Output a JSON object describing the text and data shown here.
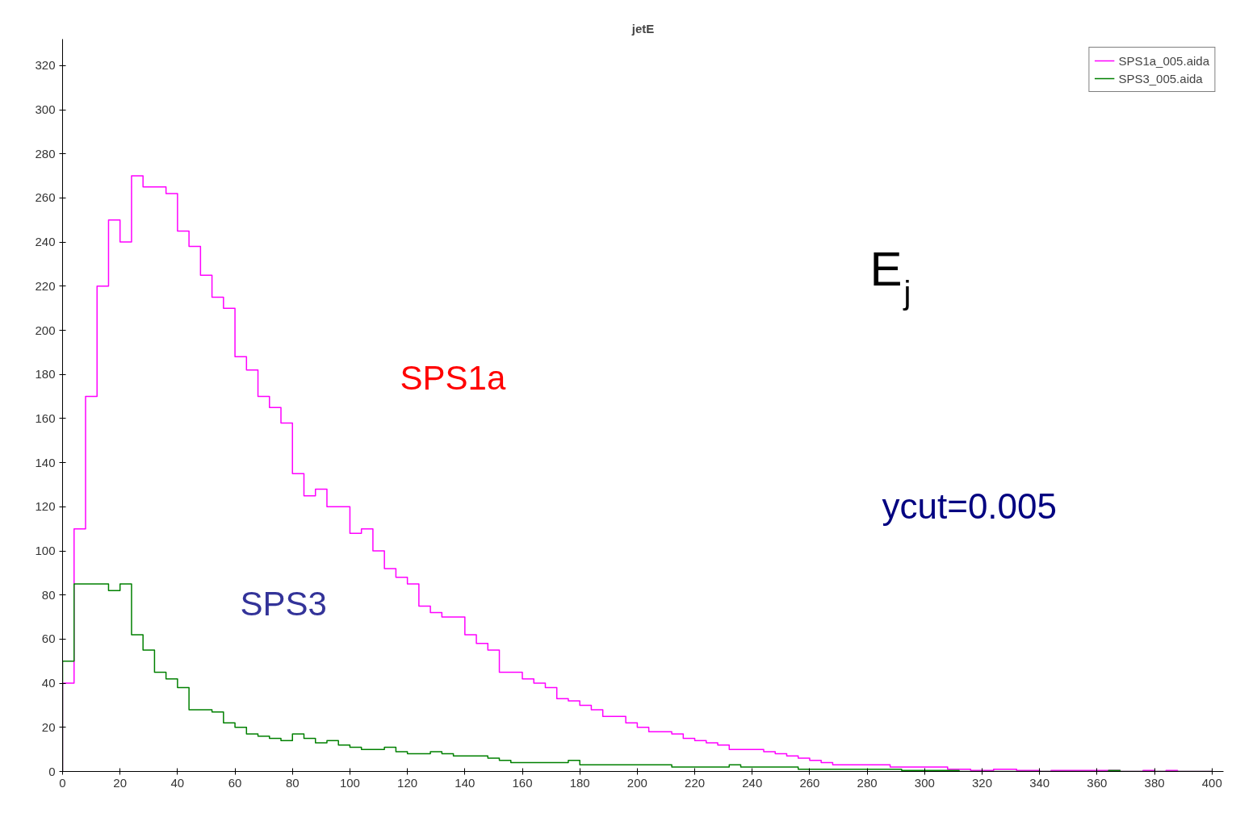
{
  "chart_data": {
    "type": "histogram",
    "title": "jetE",
    "bins": [
      0,
      4,
      8,
      12,
      16,
      20,
      24,
      28,
      32,
      36,
      40,
      44,
      48,
      52,
      56,
      60,
      64,
      68,
      72,
      76,
      80,
      84,
      88,
      92,
      96,
      100,
      104,
      108,
      112,
      116,
      120,
      124,
      128,
      132,
      136,
      140,
      144,
      148,
      152,
      156,
      160,
      164,
      168,
      172,
      176,
      180,
      184,
      188,
      192,
      196,
      200,
      204,
      208,
      212,
      216,
      220,
      224,
      228,
      232,
      236,
      240,
      244,
      248,
      252,
      256,
      260,
      264,
      268,
      272,
      276,
      280,
      284,
      288,
      292,
      296,
      300,
      304,
      308,
      312,
      316,
      320,
      324,
      328,
      332,
      336,
      340,
      344,
      348,
      352,
      356,
      360,
      364,
      368,
      372,
      376,
      380,
      384,
      388,
      392,
      396,
      400
    ],
    "series": [
      {
        "name": "SPS1a_005.aida",
        "color": "#ff00ff",
        "values": [
          40,
          110,
          170,
          220,
          250,
          240,
          270,
          265,
          265,
          262,
          245,
          238,
          225,
          215,
          210,
          188,
          182,
          170,
          165,
          158,
          135,
          125,
          128,
          120,
          120,
          108,
          110,
          100,
          92,
          88,
          85,
          75,
          72,
          70,
          70,
          62,
          58,
          55,
          45,
          45,
          42,
          40,
          38,
          33,
          32,
          30,
          28,
          25,
          25,
          22,
          20,
          18,
          18,
          17,
          15,
          14,
          13,
          12,
          10,
          10,
          10,
          9,
          8,
          7,
          6,
          5,
          4,
          3,
          3,
          3,
          3,
          3,
          2,
          2,
          2,
          2,
          2,
          1,
          1,
          0.5,
          0.5,
          1,
          1,
          0.5,
          0.5,
          0,
          0.5,
          0.5,
          0.5,
          0.5,
          0.5,
          0.5,
          0,
          0,
          0.5,
          0,
          0.5,
          0,
          0,
          0
        ]
      },
      {
        "name": "SPS3_005.aida",
        "color": "#008000",
        "values": [
          50,
          85,
          85,
          85,
          82,
          85,
          62,
          55,
          45,
          42,
          38,
          28,
          28,
          27,
          22,
          20,
          17,
          16,
          15,
          14,
          17,
          15,
          13,
          14,
          12,
          11,
          10,
          10,
          11,
          9,
          8,
          8,
          9,
          8,
          7,
          7,
          7,
          6,
          5,
          4,
          4,
          4,
          4,
          4,
          5,
          3,
          3,
          3,
          3,
          3,
          3,
          3,
          3,
          2,
          2,
          2,
          2,
          2,
          3,
          2,
          2,
          2,
          2,
          2,
          1,
          1,
          1,
          1,
          1,
          1,
          1,
          1,
          1,
          0.5,
          0.5,
          0.5,
          0.5,
          0.5,
          0,
          0,
          0,
          0,
          0,
          0,
          0,
          0,
          0,
          0,
          0,
          0,
          0,
          0.5,
          0,
          0,
          0,
          0,
          0,
          0,
          0,
          0
        ]
      }
    ],
    "xlim": [
      0,
      404
    ],
    "ylim": [
      0,
      332
    ],
    "xticks": [
      0,
      20,
      40,
      60,
      80,
      100,
      120,
      140,
      160,
      180,
      200,
      220,
      240,
      260,
      280,
      300,
      320,
      340,
      360,
      380,
      400
    ],
    "yticks": [
      0,
      20,
      40,
      60,
      80,
      100,
      120,
      140,
      160,
      180,
      200,
      220,
      240,
      260,
      280,
      300,
      320
    ],
    "grid": false,
    "legend": "top right",
    "marker": "none",
    "line_style": "solid",
    "annotations": [
      "SPS1a",
      "SPS3",
      "E$_{j}$",
      "ycut=0.005"
    ]
  }
}
